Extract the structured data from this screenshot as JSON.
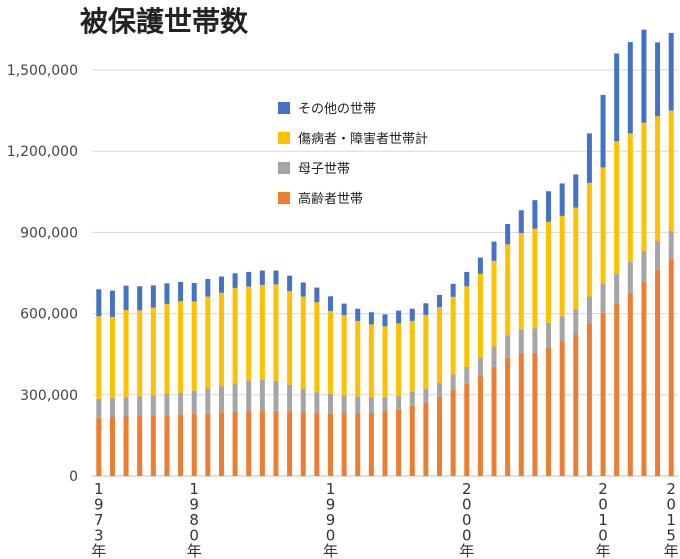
{
  "chart_data": {
    "type": "stacked-bar",
    "title": "被保護世帯数",
    "xlabel": "",
    "ylabel": "",
    "ylim": [
      0,
      1650000
    ],
    "yticks": [
      0,
      300000,
      600000,
      900000,
      1200000,
      1500000
    ],
    "ytick_labels": [
      "0",
      "300,000",
      "600,000",
      "900,000",
      "1,200,000",
      "1,500,000"
    ],
    "categories": [
      "1973",
      "1974",
      "1975",
      "1976",
      "1977",
      "1978",
      "1979",
      "1980",
      "1981",
      "1982",
      "1983",
      "1984",
      "1985",
      "1986",
      "1987",
      "1988",
      "1989",
      "1990",
      "1991",
      "1992",
      "1993",
      "1994",
      "1995",
      "1996",
      "1997",
      "1998",
      "1999",
      "2000",
      "2001",
      "2002",
      "2003",
      "2004",
      "2005",
      "2006",
      "2007",
      "2008",
      "2009",
      "2010",
      "2011",
      "2012",
      "2013",
      "2014",
      "2015"
    ],
    "x_labeled": [
      {
        "index": 0,
        "text": "1973年"
      },
      {
        "index": 7,
        "text": "1980年"
      },
      {
        "index": 17,
        "text": "1990年"
      },
      {
        "index": 27,
        "text": "2000年"
      },
      {
        "index": 37,
        "text": "2010年"
      },
      {
        "index": 42,
        "text": "2015年"
      }
    ],
    "series": [
      {
        "name": "高齢者世帯",
        "color": "#ED7D31",
        "values": [
          215000,
          218000,
          220000,
          222000,
          224000,
          226000,
          228000,
          230000,
          232000,
          235000,
          238000,
          241000,
          243000,
          241000,
          238000,
          236000,
          234000,
          232000,
          231000,
          232000,
          234000,
          238000,
          245000,
          260000,
          272000,
          290000,
          318000,
          341000,
          371000,
          403000,
          437000,
          455000,
          455000,
          474000,
          497000,
          523000,
          564000,
          603000,
          636000,
          677000,
          719000,
          761000,
          802000
        ]
      },
      {
        "name": "母子世帯",
        "color": "#A5A5A5",
        "values": [
          70000,
          70000,
          71000,
          72000,
          74000,
          77000,
          80000,
          85000,
          91000,
          97000,
          105000,
          113000,
          113000,
          111000,
          99000,
          87000,
          76000,
          72000,
          67000,
          61000,
          56000,
          53000,
          52000,
          51000,
          51000,
          54000,
          57000,
          62000,
          67000,
          75000,
          82000,
          87000,
          91000,
          92000,
          93000,
          93000,
          99000,
          108000,
          113000,
          114000,
          112000,
          107000,
          104000
        ]
      },
      {
        "name": "傷病者・障害者世帯計",
        "color": "#FFC000",
        "values": [
          305000,
          300000,
          322000,
          318000,
          324000,
          333000,
          338000,
          330000,
          340000,
          345000,
          352000,
          346000,
          350000,
          356000,
          346000,
          340000,
          332000,
          306000,
          296000,
          280000,
          270000,
          262000,
          267000,
          262000,
          272000,
          280000,
          287000,
          298000,
          309000,
          317000,
          337000,
          356000,
          368000,
          373000,
          371000,
          376000,
          420000,
          429000,
          488000,
          475000,
          474000,
          461000,
          444000
        ]
      },
      {
        "name": "その他の世帯",
        "color": "#4472C4",
        "values": [
          100000,
          97000,
          90000,
          89000,
          82000,
          76000,
          71000,
          68000,
          65000,
          60000,
          54000,
          54000,
          53000,
          51000,
          57000,
          52000,
          54000,
          54000,
          43000,
          45000,
          45000,
          44000,
          47000,
          45000,
          43000,
          45000,
          48000,
          53000,
          60000,
          71000,
          75000,
          84000,
          105000,
          113000,
          120000,
          122000,
          183000,
          268000,
          324000,
          337000,
          344000,
          273000,
          287000
        ]
      }
    ],
    "legend_order": [
      "その他の世帯",
      "傷病者・障害者世帯計",
      "母子世帯",
      "高齢者世帯"
    ],
    "legend_position": "upper-left-center",
    "grid": true
  }
}
